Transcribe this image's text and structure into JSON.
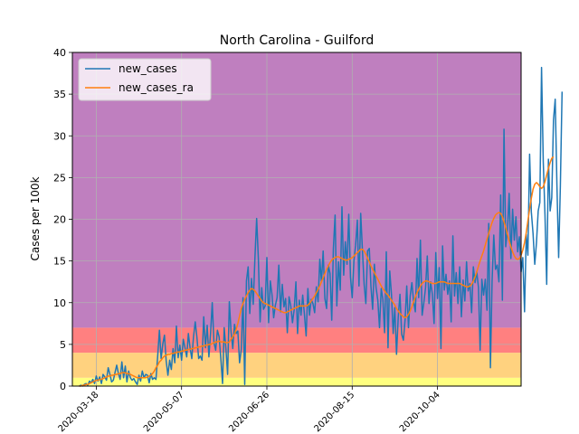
{
  "chart_data": {
    "type": "line",
    "title": "North Carolina - Guilford",
    "xlabel": "",
    "ylabel": "Cases per 100k",
    "x_start": "2020-03-08",
    "xlim": [
      "2020-03-04",
      "2020-11-22"
    ],
    "ylim": [
      0,
      40
    ],
    "yticks": [
      0,
      5,
      10,
      15,
      20,
      25,
      30,
      35,
      40
    ],
    "xticks": [
      "2020-03-18",
      "2020-05-07",
      "2020-06-26",
      "2020-08-15",
      "2020-10-04"
    ],
    "grid": true,
    "legend_position": "top-left",
    "background_bands": [
      {
        "from": 0,
        "to": 1,
        "color": "#ffff80"
      },
      {
        "from": 1,
        "to": 4,
        "color": "#ffd27f"
      },
      {
        "from": 4,
        "to": 7,
        "color": "#ff8080"
      },
      {
        "from": 7,
        "to": 40,
        "color": "#bf7fbf"
      }
    ],
    "series": [
      {
        "name": "new_cases",
        "color": "#1f77b4",
        "values": [
          0.0,
          0.1,
          0.0,
          0.2,
          0.3,
          0.1,
          0.6,
          0.4,
          0.8,
          0.3,
          1.2,
          0.6,
          1.1,
          0.3,
          1.4,
          1.1,
          0.7,
          2.2,
          1.4,
          0.5,
          0.7,
          1.6,
          2.5,
          1.5,
          0.8,
          2.9,
          1.0,
          2.4,
          0.5,
          1.8,
          1.0,
          0.7,
          0.9,
          0.5,
          0.2,
          1.3,
          0.6,
          1.8,
          1.0,
          1.4,
          1.3,
          0.4,
          1.5,
          0.8,
          1.0,
          0.8,
          3.6,
          6.7,
          3.3,
          5.1,
          6.1,
          3.0,
          1.3,
          3.1,
          2.0,
          4.5,
          2.8,
          7.2,
          3.4,
          4.9,
          3.1,
          5.6,
          4.6,
          3.5,
          6.3,
          4.6,
          3.3,
          5.9,
          7.7,
          5.8,
          3.3,
          3.6,
          3.1,
          8.3,
          4.6,
          7.3,
          3.5,
          6.4,
          10.0,
          5.2,
          4.3,
          6.7,
          5.9,
          3.3,
          0.3,
          7.0,
          4.5,
          1.4,
          10.1,
          6.5,
          4.5,
          7.4,
          6.3,
          6.6,
          2.8,
          4.4,
          10.6,
          0.2,
          12.6,
          14.3,
          8.7,
          12.9,
          9.8,
          15.4,
          20.1,
          15.2,
          7.7,
          11.8,
          9.2,
          9.6,
          15.4,
          7.6,
          12.6,
          10.9,
          8.2,
          9.7,
          10.6,
          14.5,
          8.9,
          12.2,
          9.5,
          10.5,
          6.4,
          10.7,
          9.6,
          7.6,
          9.2,
          12.5,
          6.3,
          10.3,
          8.5,
          10.9,
          8.6,
          6.0,
          11.7,
          8.5,
          10.4,
          9.9,
          8.8,
          11.9,
          10.1,
          15.2,
          12.5,
          16.2,
          10.5,
          9.3,
          14.5,
          13.5,
          7.9,
          16.5,
          20.5,
          9.6,
          14.9,
          11.5,
          21.5,
          13.3,
          17.3,
          14.6,
          20.6,
          13.1,
          10.6,
          15.0,
          16.9,
          19.9,
          12.0,
          20.7,
          16.3,
          12.2,
          9.9,
          16.2,
          16.5,
          12.0,
          9.2,
          14.6,
          11.8,
          10.3,
          7.0,
          11.7,
          10.4,
          6.4,
          16.1,
          4.6,
          13.8,
          11.0,
          6.3,
          9.4,
          3.8,
          8.3,
          11.0,
          6.2,
          5.5,
          8.0,
          12.0,
          7.0,
          10.8,
          12.4,
          10.1,
          8.9,
          15.3,
          10.6,
          17.5,
          8.5,
          10.0,
          11.8,
          15.6,
          9.9,
          12.5,
          11.0,
          7.5,
          16.0,
          10.5,
          14.2,
          4.5,
          16.8,
          11.5,
          13.4,
          11.0,
          12.6,
          7.7,
          18.0,
          10.8,
          13.6,
          9.9,
          14.3,
          8.3,
          12.7,
          10.2,
          14.9,
          11.4,
          12.3,
          8.8,
          14.3,
          12.4,
          13.7,
          11.8,
          4.3,
          12.8,
          10.9,
          12.8,
          9.1,
          19.5,
          2.2,
          12.5,
          18.1,
          14.0,
          14.5,
          12.5,
          22.9,
          10.3,
          30.8,
          16.7,
          18.7,
          23.1,
          15.3,
          21.2,
          17.5,
          20.3,
          16.1,
          17.9,
          13.7,
          15.4,
          8.9,
          18.2,
          15.7,
          27.8,
          20.9,
          18.3,
          14.6,
          17.2,
          21.0,
          22.0,
          38.2,
          26.9,
          20.5,
          12.2,
          27.2,
          21.0,
          22.6,
          31.9,
          34.4,
          24.1,
          15.4,
          24.0,
          35.3
        ]
      },
      {
        "name": "new_cases_ra",
        "color": "#ff7f0e",
        "values": [
          0.0,
          0.0,
          0.1,
          0.1,
          0.2,
          0.2,
          0.3,
          0.4,
          0.5,
          0.6,
          0.7,
          0.7,
          0.8,
          0.8,
          0.9,
          1.0,
          1.1,
          1.2,
          1.2,
          1.3,
          1.3,
          1.4,
          1.4,
          1.5,
          1.5,
          1.6,
          1.6,
          1.6,
          1.5,
          1.5,
          1.4,
          1.3,
          1.2,
          1.1,
          1.0,
          1.0,
          1.0,
          1.0,
          1.0,
          1.0,
          1.1,
          1.2,
          1.3,
          1.5,
          1.8,
          2.2,
          2.5,
          2.9,
          3.1,
          3.4,
          3.6,
          3.7,
          3.8,
          3.8,
          3.9,
          3.9,
          4.0,
          4.0,
          4.1,
          4.1,
          4.2,
          4.2,
          4.3,
          4.3,
          4.4,
          4.4,
          4.5,
          4.5,
          4.6,
          4.6,
          4.7,
          4.7,
          4.8,
          4.8,
          4.9,
          4.9,
          5.0,
          5.0,
          5.1,
          5.2,
          5.3,
          5.3,
          5.4,
          5.3,
          5.3,
          5.3,
          5.2,
          5.2,
          5.3,
          5.6,
          5.9,
          6.2,
          6.8,
          7.5,
          8.4,
          9.3,
          9.9,
          10.4,
          10.8,
          11.2,
          11.5,
          11.7,
          11.6,
          11.4,
          11.1,
          10.8,
          10.5,
          10.2,
          10.0,
          9.9,
          9.8,
          9.7,
          9.6,
          9.5,
          9.4,
          9.3,
          9.2,
          9.1,
          9.0,
          8.9,
          8.8,
          8.8,
          8.9,
          9.0,
          9.1,
          9.2,
          9.3,
          9.4,
          9.5,
          9.6,
          9.6,
          9.6,
          9.6,
          9.6,
          9.7,
          9.9,
          10.2,
          10.5,
          10.8,
          11.2,
          11.6,
          12.0,
          12.5,
          13.0,
          13.5,
          14.0,
          14.4,
          14.8,
          15.1,
          15.3,
          15.4,
          15.5,
          15.5,
          15.4,
          15.3,
          15.2,
          15.1,
          15.1,
          15.2,
          15.3,
          15.4,
          15.6,
          15.8,
          16.0,
          16.2,
          16.4,
          16.4,
          16.2,
          15.8,
          15.3,
          14.9,
          14.4,
          14.0,
          13.6,
          13.2,
          12.8,
          12.4,
          12.0,
          11.7,
          11.4,
          11.1,
          10.9,
          10.6,
          10.3,
          10.0,
          9.7,
          9.3,
          9.0,
          8.7,
          8.5,
          8.3,
          8.2,
          8.3,
          8.6,
          9.0,
          9.5,
          10.1,
          10.7,
          11.2,
          11.6,
          12.0,
          12.3,
          12.5,
          12.6,
          12.6,
          12.5,
          12.4,
          12.3,
          12.3,
          12.3,
          12.4,
          12.5,
          12.5,
          12.5,
          12.5,
          12.4,
          12.3,
          12.3,
          12.3,
          12.3,
          12.3,
          12.3,
          12.3,
          12.3,
          12.2,
          12.1,
          12.0,
          11.9,
          11.9,
          12.0,
          12.2,
          12.6,
          13.1,
          13.7,
          14.4,
          15.0,
          15.6,
          16.2,
          16.9,
          17.6,
          18.3,
          19.0,
          19.6,
          20.1,
          20.5,
          20.7,
          20.8,
          20.7,
          20.3,
          19.7,
          19.0,
          18.2,
          17.4,
          16.7,
          16.1,
          15.6,
          15.3,
          15.2,
          15.3,
          15.7,
          16.3,
          17.2,
          18.4,
          19.8,
          21.2,
          22.5,
          23.6,
          24.2,
          24.4,
          24.2,
          23.9,
          23.7,
          23.9,
          24.5,
          25.3,
          26.1,
          26.8,
          27.3,
          27.5
        ]
      }
    ]
  }
}
